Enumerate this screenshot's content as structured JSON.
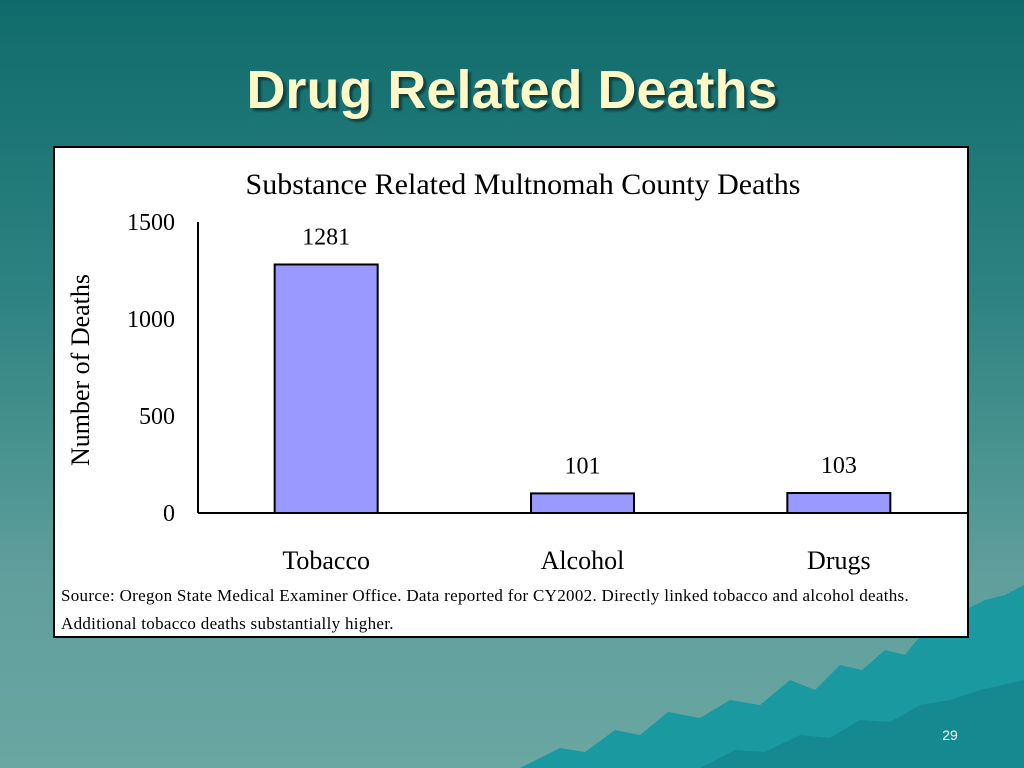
{
  "slide": {
    "title": "Drug Related Deaths",
    "page_number": "29"
  },
  "colors": {
    "background_top": "#0f6b6b",
    "background_bottom": "#6aa6a2",
    "title": "#fff9c7",
    "bar_fill": "#9999ff",
    "mountain": "#1a9aa0"
  },
  "chart_data": {
    "type": "bar",
    "title": "Substance Related Multnomah County Deaths",
    "ylabel": "Number of Deaths",
    "xlabel": "",
    "categories": [
      "Tobacco",
      "Alcohol",
      "Drugs"
    ],
    "values": [
      1281,
      101,
      103
    ],
    "data_labels": [
      "1281",
      "101",
      "103"
    ],
    "ylim": [
      0,
      1500
    ],
    "yticks": [
      0,
      500,
      1000,
      1500
    ],
    "grid": false,
    "legend": "none"
  },
  "source_note": "Source: Oregon State Medical Examiner Office. Data reported for CY2002. Directly linked tobacco and alcohol deaths. Additional tobacco deaths substantially higher."
}
